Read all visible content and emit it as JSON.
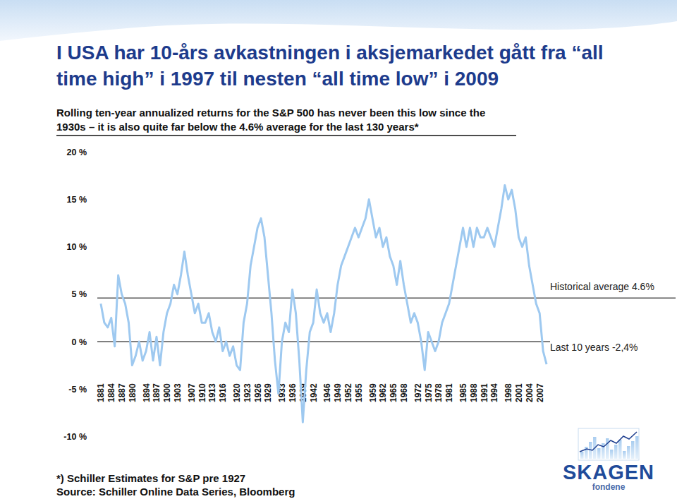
{
  "chart_data": {
    "type": "line",
    "title": [
      "I USA har 10-års avkastningen i aksjemarkedet gått fra “all",
      "time high” i 1997 til nesten “all time low” i 2009"
    ],
    "subtitle": [
      "Rolling ten-year annualized returns for the S&P 500 has never been this low since the",
      "1930s – it is also quite far below the 4.6% average for the last 130 years*"
    ],
    "x": [
      1881,
      1882,
      1883,
      1884,
      1885,
      1886,
      1887,
      1888,
      1889,
      1890,
      1891,
      1892,
      1893,
      1894,
      1895,
      1896,
      1897,
      1898,
      1899,
      1900,
      1901,
      1902,
      1903,
      1904,
      1905,
      1906,
      1907,
      1908,
      1909,
      1910,
      1911,
      1912,
      1913,
      1914,
      1915,
      1916,
      1917,
      1918,
      1919,
      1920,
      1921,
      1922,
      1923,
      1924,
      1925,
      1926,
      1927,
      1928,
      1929,
      1930,
      1931,
      1932,
      1933,
      1934,
      1935,
      1936,
      1937,
      1938,
      1939,
      1940,
      1941,
      1942,
      1943,
      1944,
      1945,
      1946,
      1947,
      1948,
      1949,
      1950,
      1951,
      1952,
      1953,
      1954,
      1955,
      1956,
      1957,
      1958,
      1959,
      1960,
      1961,
      1962,
      1963,
      1964,
      1965,
      1966,
      1967,
      1968,
      1969,
      1970,
      1971,
      1972,
      1973,
      1974,
      1975,
      1976,
      1977,
      1978,
      1979,
      1980,
      1981,
      1982,
      1983,
      1984,
      1985,
      1986,
      1987,
      1988,
      1989,
      1990,
      1991,
      1992,
      1993,
      1994,
      1995,
      1996,
      1997,
      1998,
      1999,
      2000,
      2001,
      2002,
      2003,
      2004,
      2005,
      2006,
      2007,
      2008,
      2009
    ],
    "values": [
      4,
      2,
      1.5,
      2.5,
      -0.5,
      7,
      5,
      4,
      2,
      -2.5,
      -1.5,
      0,
      -2,
      -1,
      1,
      -2,
      0.5,
      -2.5,
      1,
      3,
      4,
      6,
      5,
      7,
      9.5,
      7,
      5,
      3,
      4,
      2,
      2,
      3,
      1,
      0,
      1.5,
      -1,
      0,
      -1.5,
      -0.5,
      -2.5,
      -3,
      2,
      4,
      8,
      10,
      12,
      13,
      11,
      7,
      3,
      -2,
      -5.5,
      0,
      2,
      1,
      5.5,
      3,
      -2,
      -8.5,
      -3,
      1,
      2,
      5.5,
      3,
      2,
      3,
      1,
      3,
      6,
      8,
      9,
      10,
      11,
      12,
      11,
      12,
      13,
      15,
      13,
      11,
      12,
      10,
      11,
      9,
      8,
      6,
      8.5,
      6,
      4,
      2,
      3,
      2,
      0,
      -3,
      1,
      0,
      -1,
      0,
      2,
      3,
      4,
      6,
      8,
      10,
      12,
      10,
      12,
      10,
      12,
      11,
      11,
      12,
      11,
      10,
      12,
      14,
      16.5,
      15,
      16,
      14,
      11,
      10,
      11,
      8,
      6,
      4,
      3,
      -1,
      -2.4
    ],
    "color": "#9ec9f0",
    "xlim": [
      1880,
      2010
    ],
    "xticks": [
      1881,
      1884,
      1887,
      1890,
      1894,
      1897,
      1900,
      1903,
      1907,
      1910,
      1913,
      1916,
      1920,
      1923,
      1926,
      1929,
      1933,
      1936,
      1939,
      1942,
      1946,
      1949,
      1952,
      1955,
      1959,
      1962,
      1965,
      1968,
      1972,
      1975,
      1978,
      1981,
      1985,
      1988,
      1991,
      1994,
      1998,
      2001,
      2004,
      2007
    ],
    "ylim": [
      -10,
      20
    ],
    "yticks": [
      {
        "value": 20,
        "label": "20 %"
      },
      {
        "value": 15,
        "label": "15 %"
      },
      {
        "value": 10,
        "label": "10 %"
      },
      {
        "value": 5,
        "label": "5 %"
      },
      {
        "value": 0,
        "label": "0 %"
      },
      {
        "value": -5,
        "label": "-5 %"
      },
      {
        "value": -10,
        "label": "-10 %"
      }
    ],
    "grid": false,
    "annotations": [
      {
        "text": "Historical average 4.6%",
        "y": 4.6
      },
      {
        "text": "Last 10 years -2,4%"
      }
    ]
  },
  "footer": {
    "notes": [
      "*) Schiller Estimates for S&P pre 1927",
      "Source: Schiller Online Data Series, Bloomberg"
    ],
    "logo_name": "SKAGEN",
    "logo_sub": "fondene"
  }
}
